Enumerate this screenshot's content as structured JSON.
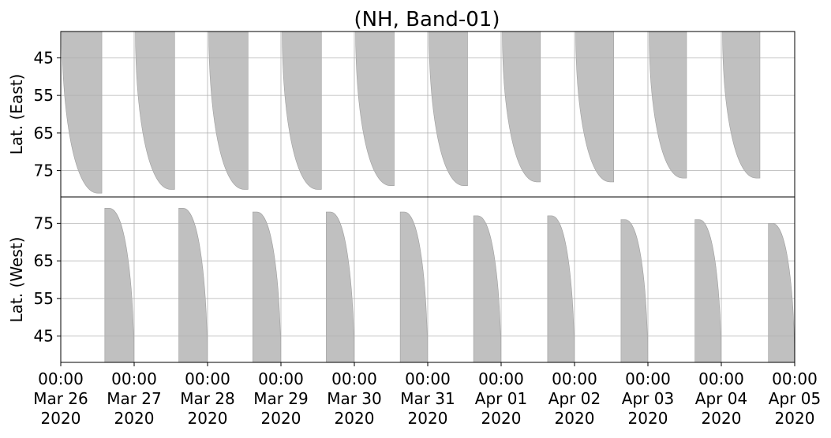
{
  "chart_data": {
    "type": "area",
    "title": "(NH, Band-01)",
    "colors": {
      "fill": "#c0c0c0",
      "edge": "#9e9e9e",
      "grid": "#b0b0b0"
    },
    "grid": true,
    "x_ticks": [
      {
        "time": "00:00",
        "date": "Mar 26",
        "year": "2020"
      },
      {
        "time": "00:00",
        "date": "Mar 27",
        "year": "2020"
      },
      {
        "time": "00:00",
        "date": "Mar 28",
        "year": "2020"
      },
      {
        "time": "00:00",
        "date": "Mar 29",
        "year": "2020"
      },
      {
        "time": "00:00",
        "date": "Mar 30",
        "year": "2020"
      },
      {
        "time": "00:00",
        "date": "Mar 31",
        "year": "2020"
      },
      {
        "time": "00:00",
        "date": "Apr 01",
        "year": "2020"
      },
      {
        "time": "00:00",
        "date": "Apr 02",
        "year": "2020"
      },
      {
        "time": "00:00",
        "date": "Apr 03",
        "year": "2020"
      },
      {
        "time": "00:00",
        "date": "Apr 04",
        "year": "2020"
      },
      {
        "time": "00:00",
        "date": "Apr 05",
        "year": "2020"
      }
    ],
    "xlim": [
      "2020-03-26 00:00",
      "2020-04-05 00:00"
    ],
    "panels": [
      {
        "name": "east",
        "ylabel": "Lat. (East)",
        "ylim": [
          38,
          82
        ],
        "y_inverted": true,
        "y_ticks": [
          45,
          55,
          65,
          75
        ],
        "bands": [
          {
            "start": "2020-03-26 00:24",
            "end": "2020-03-26 13:26",
            "max_lat": 81
          },
          {
            "start": "2020-03-27 00:24",
            "end": "2020-03-27 13:14",
            "max_lat": 80
          },
          {
            "start": "2020-03-28 00:24",
            "end": "2020-03-28 13:14",
            "max_lat": 80
          },
          {
            "start": "2020-03-29 00:24",
            "end": "2020-03-29 13:14",
            "max_lat": 80
          },
          {
            "start": "2020-03-30 00:24",
            "end": "2020-03-30 13:02",
            "max_lat": 79
          },
          {
            "start": "2020-03-31 00:24",
            "end": "2020-03-31 13:02",
            "max_lat": 79
          },
          {
            "start": "2020-04-01 00:24",
            "end": "2020-04-01 12:50",
            "max_lat": 78
          },
          {
            "start": "2020-04-02 00:24",
            "end": "2020-04-02 12:50",
            "max_lat": 78
          },
          {
            "start": "2020-04-03 00:24",
            "end": "2020-04-03 12:38",
            "max_lat": 77
          },
          {
            "start": "2020-04-04 00:24",
            "end": "2020-04-04 12:38",
            "max_lat": 77
          }
        ]
      },
      {
        "name": "west",
        "ylabel": "Lat. (West)",
        "ylim": [
          38,
          82
        ],
        "y_inverted": false,
        "y_ticks": [
          45,
          55,
          65,
          75
        ],
        "bands": [
          {
            "start": "2020-03-26 14:24",
            "end": "2020-03-26 23:55",
            "max_lat": 79
          },
          {
            "start": "2020-03-27 14:36",
            "end": "2020-03-27 23:55",
            "max_lat": 79
          },
          {
            "start": "2020-03-28 14:48",
            "end": "2020-03-28 23:55",
            "max_lat": 78
          },
          {
            "start": "2020-03-29 14:48",
            "end": "2020-03-29 23:55",
            "max_lat": 78
          },
          {
            "start": "2020-03-30 15:00",
            "end": "2020-03-30 23:55",
            "max_lat": 78
          },
          {
            "start": "2020-03-31 15:00",
            "end": "2020-03-31 23:55",
            "max_lat": 77
          },
          {
            "start": "2020-04-01 15:12",
            "end": "2020-04-01 23:55",
            "max_lat": 77
          },
          {
            "start": "2020-04-02 15:12",
            "end": "2020-04-02 23:55",
            "max_lat": 76
          },
          {
            "start": "2020-04-03 15:24",
            "end": "2020-04-03 23:55",
            "max_lat": 76
          },
          {
            "start": "2020-04-04 15:24",
            "end": "2020-04-04 23:55",
            "max_lat": 75
          }
        ]
      }
    ]
  }
}
